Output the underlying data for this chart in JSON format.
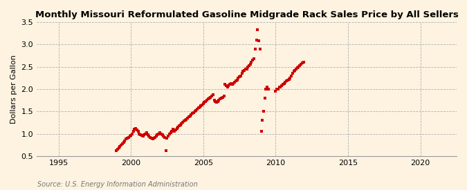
{
  "title": "Monthly Missouri Reformulated Gasoline Midgrade Rack Sales Price by All Sellers",
  "ylabel": "Dollars per Gallon",
  "source": "Source: U.S. Energy Information Administration",
  "background_color": "#fdf3e0",
  "marker_color": "#cc0000",
  "xlim": [
    1993.5,
    2022.5
  ],
  "ylim": [
    0.5,
    3.5
  ],
  "yticks": [
    0.5,
    1.0,
    1.5,
    2.0,
    2.5,
    3.0,
    3.5
  ],
  "xticks": [
    1995,
    2000,
    2005,
    2010,
    2015,
    2020
  ],
  "data": [
    [
      1999.0,
      0.62
    ],
    [
      1999.08,
      0.65
    ],
    [
      1999.17,
      0.68
    ],
    [
      1999.25,
      0.72
    ],
    [
      1999.33,
      0.75
    ],
    [
      1999.42,
      0.78
    ],
    [
      1999.5,
      0.8
    ],
    [
      1999.58,
      0.84
    ],
    [
      1999.67,
      0.88
    ],
    [
      1999.75,
      0.9
    ],
    [
      1999.83,
      0.92
    ],
    [
      1999.92,
      0.95
    ],
    [
      2000.0,
      0.97
    ],
    [
      2000.08,
      1.0
    ],
    [
      2000.17,
      1.05
    ],
    [
      2000.25,
      1.1
    ],
    [
      2000.33,
      1.12
    ],
    [
      2000.42,
      1.08
    ],
    [
      2000.5,
      1.05
    ],
    [
      2000.58,
      1.0
    ],
    [
      2000.67,
      0.98
    ],
    [
      2000.75,
      0.97
    ],
    [
      2000.83,
      0.95
    ],
    [
      2000.92,
      0.98
    ],
    [
      2001.0,
      1.0
    ],
    [
      2001.08,
      1.02
    ],
    [
      2001.17,
      0.98
    ],
    [
      2001.25,
      0.95
    ],
    [
      2001.33,
      0.92
    ],
    [
      2001.42,
      0.9
    ],
    [
      2001.5,
      0.88
    ],
    [
      2001.58,
      0.9
    ],
    [
      2001.67,
      0.92
    ],
    [
      2001.75,
      0.95
    ],
    [
      2001.83,
      0.98
    ],
    [
      2001.92,
      1.0
    ],
    [
      2002.0,
      1.02
    ],
    [
      2002.08,
      1.0
    ],
    [
      2002.17,
      0.98
    ],
    [
      2002.25,
      0.95
    ],
    [
      2002.33,
      0.92
    ],
    [
      2002.42,
      0.62
    ],
    [
      2002.5,
      0.9
    ],
    [
      2002.58,
      0.95
    ],
    [
      2002.67,
      1.0
    ],
    [
      2002.75,
      1.02
    ],
    [
      2002.83,
      1.05
    ],
    [
      2002.92,
      1.1
    ],
    [
      2003.0,
      1.05
    ],
    [
      2003.08,
      1.08
    ],
    [
      2003.17,
      1.12
    ],
    [
      2003.25,
      1.15
    ],
    [
      2003.33,
      1.18
    ],
    [
      2003.42,
      1.2
    ],
    [
      2003.5,
      1.22
    ],
    [
      2003.58,
      1.25
    ],
    [
      2003.67,
      1.28
    ],
    [
      2003.75,
      1.3
    ],
    [
      2003.83,
      1.32
    ],
    [
      2003.92,
      1.35
    ],
    [
      2004.0,
      1.38
    ],
    [
      2004.08,
      1.4
    ],
    [
      2004.17,
      1.42
    ],
    [
      2004.25,
      1.45
    ],
    [
      2004.33,
      1.48
    ],
    [
      2004.42,
      1.5
    ],
    [
      2004.5,
      1.52
    ],
    [
      2004.58,
      1.55
    ],
    [
      2004.67,
      1.58
    ],
    [
      2004.75,
      1.6
    ],
    [
      2004.83,
      1.62
    ],
    [
      2004.92,
      1.65
    ],
    [
      2005.0,
      1.68
    ],
    [
      2005.08,
      1.7
    ],
    [
      2005.17,
      1.72
    ],
    [
      2005.25,
      1.75
    ],
    [
      2005.33,
      1.78
    ],
    [
      2005.42,
      1.8
    ],
    [
      2005.5,
      1.82
    ],
    [
      2005.58,
      1.85
    ],
    [
      2005.67,
      1.88
    ],
    [
      2005.75,
      1.75
    ],
    [
      2005.83,
      1.72
    ],
    [
      2005.92,
      1.7
    ],
    [
      2006.0,
      1.72
    ],
    [
      2006.08,
      1.75
    ],
    [
      2006.17,
      1.78
    ],
    [
      2006.25,
      1.8
    ],
    [
      2006.33,
      1.82
    ],
    [
      2006.42,
      1.85
    ],
    [
      2006.5,
      2.1
    ],
    [
      2006.58,
      2.08
    ],
    [
      2006.67,
      2.05
    ],
    [
      2006.75,
      2.08
    ],
    [
      2006.83,
      2.1
    ],
    [
      2006.92,
      2.12
    ],
    [
      2007.0,
      2.1
    ],
    [
      2007.08,
      2.12
    ],
    [
      2007.17,
      2.15
    ],
    [
      2007.25,
      2.18
    ],
    [
      2007.33,
      2.2
    ],
    [
      2007.42,
      2.25
    ],
    [
      2007.5,
      2.28
    ],
    [
      2007.58,
      2.3
    ],
    [
      2007.67,
      2.35
    ],
    [
      2007.75,
      2.4
    ],
    [
      2007.83,
      2.42
    ],
    [
      2007.92,
      2.45
    ],
    [
      2008.0,
      2.45
    ],
    [
      2008.08,
      2.5
    ],
    [
      2008.17,
      2.52
    ],
    [
      2008.25,
      2.55
    ],
    [
      2008.33,
      2.6
    ],
    [
      2008.42,
      2.65
    ],
    [
      2008.5,
      2.68
    ],
    [
      2008.58,
      2.9
    ],
    [
      2008.67,
      3.1
    ],
    [
      2008.75,
      3.33
    ],
    [
      2008.83,
      3.08
    ],
    [
      2008.92,
      2.9
    ],
    [
      2009.0,
      1.05
    ],
    [
      2009.08,
      1.3
    ],
    [
      2009.17,
      1.5
    ],
    [
      2009.25,
      1.8
    ],
    [
      2009.33,
      2.0
    ],
    [
      2009.42,
      2.05
    ],
    [
      2009.5,
      2.0
    ],
    [
      2010.0,
      1.95
    ],
    [
      2010.08,
      2.0
    ],
    [
      2010.17,
      2.0
    ],
    [
      2010.25,
      2.05
    ],
    [
      2010.33,
      2.05
    ],
    [
      2010.42,
      2.08
    ],
    [
      2010.5,
      2.1
    ],
    [
      2010.58,
      2.12
    ],
    [
      2010.67,
      2.15
    ],
    [
      2010.75,
      2.18
    ],
    [
      2010.83,
      2.2
    ],
    [
      2010.92,
      2.22
    ],
    [
      2011.0,
      2.25
    ],
    [
      2011.08,
      2.3
    ],
    [
      2011.17,
      2.35
    ],
    [
      2011.25,
      2.4
    ],
    [
      2011.33,
      2.42
    ],
    [
      2011.42,
      2.45
    ],
    [
      2011.5,
      2.48
    ],
    [
      2011.58,
      2.5
    ],
    [
      2011.67,
      2.52
    ],
    [
      2011.75,
      2.55
    ],
    [
      2011.83,
      2.58
    ],
    [
      2011.92,
      2.6
    ]
  ]
}
